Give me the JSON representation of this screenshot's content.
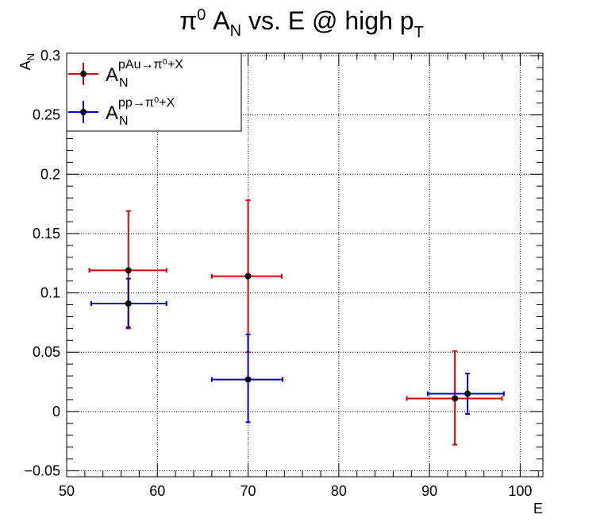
{
  "chart_data": {
    "type": "scatter",
    "title": {
      "pre": "π",
      "pre_sup": "0",
      "mid": " A",
      "mid_sub": "N",
      "post": " vs. E @ high p",
      "post_sub": "T"
    },
    "xlabel": "E",
    "ylabel": {
      "base": "A",
      "sub": "N"
    },
    "xlim": [
      50,
      102.5
    ],
    "ylim": [
      -0.055,
      0.302
    ],
    "x_ticks": [
      50,
      60,
      70,
      80,
      90,
      100
    ],
    "x_tick_labels": [
      "50",
      "60",
      "70",
      "80",
      "90",
      "100"
    ],
    "y_ticks": [
      -0.05,
      0,
      0.05,
      0.1,
      0.15,
      0.2,
      0.25,
      0.3
    ],
    "y_tick_labels": [
      "−0.05",
      "0",
      "0.05",
      "0.1",
      "0.15",
      "0.2",
      "0.25",
      "0.3"
    ],
    "grid": true,
    "legend_placement": "top-left",
    "series": [
      {
        "legend_base": "A",
        "legend_sub": "N",
        "legend_sup": "pAu→π⁰+X",
        "color": "#dd0000",
        "points": [
          {
            "x": 56.8,
            "y": 0.119,
            "xlo": 52.5,
            "xhi": 61.0,
            "ylo": 0.07,
            "yhi": 0.169
          },
          {
            "x": 70.0,
            "y": 0.114,
            "xlo": 66.0,
            "xhi": 73.7,
            "ylo": 0.05,
            "yhi": 0.178
          },
          {
            "x": 92.8,
            "y": 0.011,
            "xlo": 87.5,
            "xhi": 98.0,
            "ylo": -0.028,
            "yhi": 0.051
          }
        ]
      },
      {
        "legend_base": "A",
        "legend_sub": "N",
        "legend_sup": "pp→π⁰+X",
        "color": "#0000cc",
        "points": [
          {
            "x": 56.8,
            "y": 0.091,
            "xlo": 52.7,
            "xhi": 61.0,
            "ylo": 0.071,
            "yhi": 0.112
          },
          {
            "x": 70.0,
            "y": 0.027,
            "xlo": 66.0,
            "xhi": 73.8,
            "ylo": -0.009,
            "yhi": 0.065
          },
          {
            "x": 94.2,
            "y": 0.015,
            "xlo": 89.8,
            "xhi": 98.2,
            "ylo": -0.002,
            "yhi": 0.032
          }
        ]
      }
    ]
  }
}
